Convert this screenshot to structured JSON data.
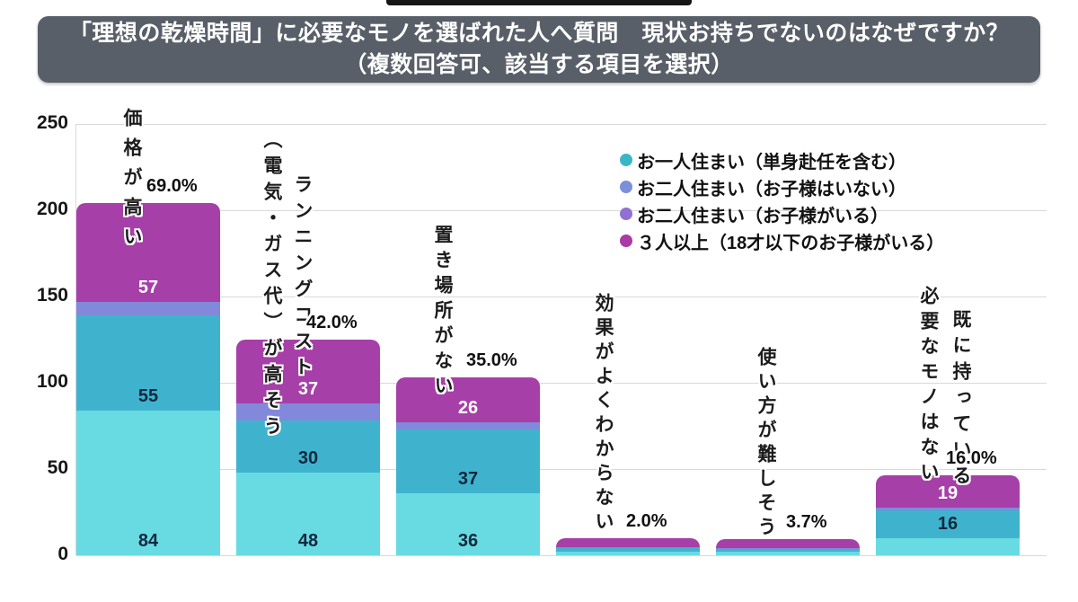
{
  "title": {
    "line1": "「理想の乾燥時間」に必要なモノを選ばれた人へ質問　現状お持ちでないのはなぜですか？",
    "line2": "（複数回答可、該当する項目を選択）"
  },
  "legend": {
    "items": [
      {
        "label": "お一人住まい（単身赴任を含む）",
        "dot_color": "#3BB6C9"
      },
      {
        "label": "お二人住まい（お子様はいない）",
        "dot_color": "#7B8FDB"
      },
      {
        "label": "お二人住まい（お子様がいる）",
        "dot_color": "#9070D2"
      },
      {
        "label": "３人以上（18才以下のお子様がいる）",
        "dot_color": "#A93AA6"
      }
    ]
  },
  "chart_data": {
    "type": "bar",
    "stacked": true,
    "ylim": [
      0,
      250
    ],
    "yticks": [
      0,
      50,
      100,
      150,
      200,
      250
    ],
    "grid": true,
    "legend_position": "right-upper",
    "categories": [
      "価格が高い",
      "ランニングコスト（電気・ガス代）が高そう",
      "置き場所がない",
      "効果がよくわからない",
      "使い方が難しそう",
      "既に持っている　必要なモノはない"
    ],
    "category_columns": [
      [
        "価格が高い"
      ],
      [
        "ランニングコスト",
        "（電気・ガス代）が高そう"
      ],
      [
        "置き場所がない"
      ],
      [
        "効果がよくわからない"
      ],
      [
        "使い方が難しそう"
      ],
      [
        "既に持っている",
        "必要なモノはない"
      ]
    ],
    "series": [
      {
        "name": "お一人住まい（単身赴任を含む）",
        "color": "#68DBE2",
        "legend_color": "#3BB6C9",
        "values": [
          84,
          48,
          36,
          2,
          2,
          10
        ],
        "labels": [
          "84",
          "48",
          "36",
          "",
          "",
          ""
        ],
        "label_color": "#10283E"
      },
      {
        "name": "お二人住まい（お子様はいない）",
        "color": "#3FB3CE",
        "legend_color": "#7B8FDB",
        "values": [
          55,
          30,
          37,
          2,
          1.5,
          16
        ],
        "labels": [
          "55",
          "30",
          "37",
          "",
          "",
          "16"
        ],
        "label_color": "#10283E"
      },
      {
        "name": "お二人住まい（お子様がいる）",
        "color": "#8289DB",
        "legend_color": "#9070D2",
        "values": [
          8,
          10,
          4,
          0.5,
          0.5,
          1.5
        ],
        "labels": [
          "",
          "",
          "",
          "",
          "",
          ""
        ],
        "label_color": "#10283E"
      },
      {
        "name": "３人以上（18才以下のお子様がいる）",
        "color": "#A63FA8",
        "legend_color": "#A93AA6",
        "values": [
          57,
          37,
          26,
          5.5,
          5.5,
          19
        ],
        "labels": [
          "57",
          "37",
          "26",
          "",
          "",
          "19"
        ],
        "label_color": "#FFFFFF"
      }
    ],
    "percent_labels": [
      "69.0%",
      "42.0%",
      "35.0%",
      "2.0%",
      "3.7%",
      "16.0%"
    ]
  }
}
